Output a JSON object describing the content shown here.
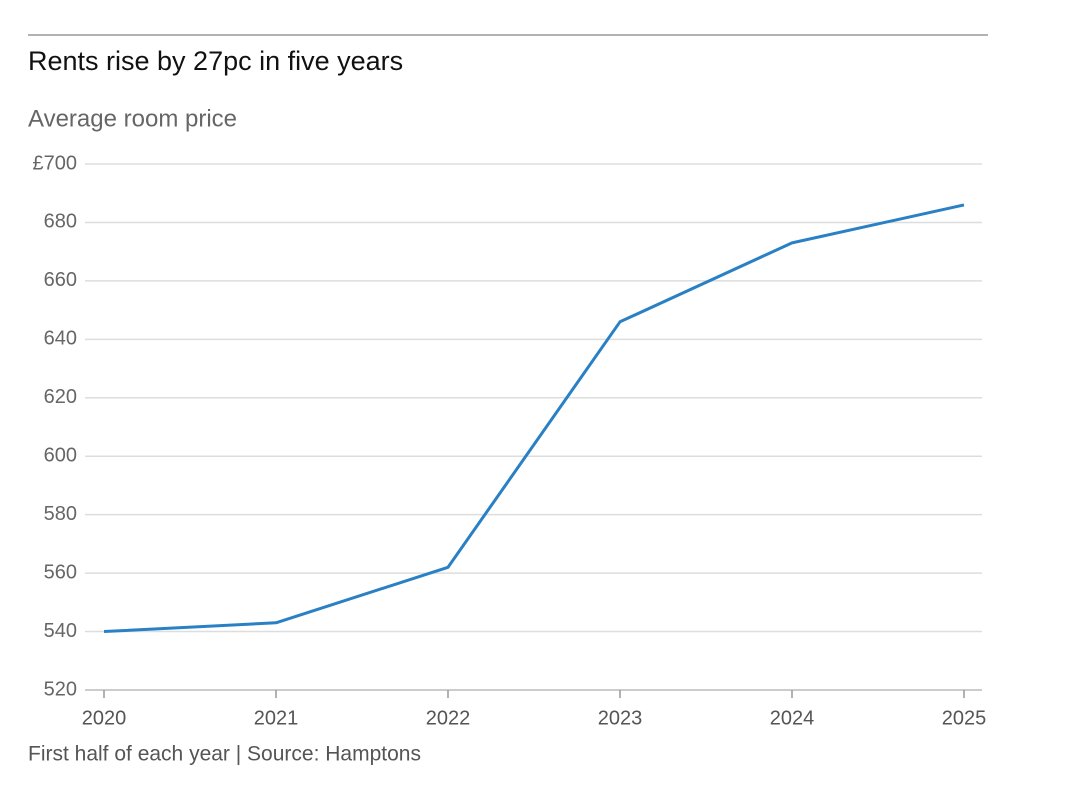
{
  "chart_data": {
    "type": "line",
    "title": "Rents rise by 27pc in five years",
    "subtitle": "Average room price",
    "footnote": "First half of each year | Source: Hamptons",
    "x": [
      2020,
      2021,
      2022,
      2023,
      2024,
      2025
    ],
    "series": [
      {
        "name": "Average room price",
        "color": "#2a80c4",
        "values": [
          540,
          543,
          562,
          646,
          673,
          686
        ]
      }
    ],
    "xlim": [
      2020,
      2025
    ],
    "xticks": [
      2020,
      2021,
      2022,
      2023,
      2024,
      2025
    ],
    "ylim": [
      520,
      700
    ],
    "yticks": [
      520,
      540,
      560,
      580,
      600,
      620,
      640,
      660,
      680,
      {
        "value": 700,
        "label": "£700"
      }
    ],
    "grid": true
  }
}
